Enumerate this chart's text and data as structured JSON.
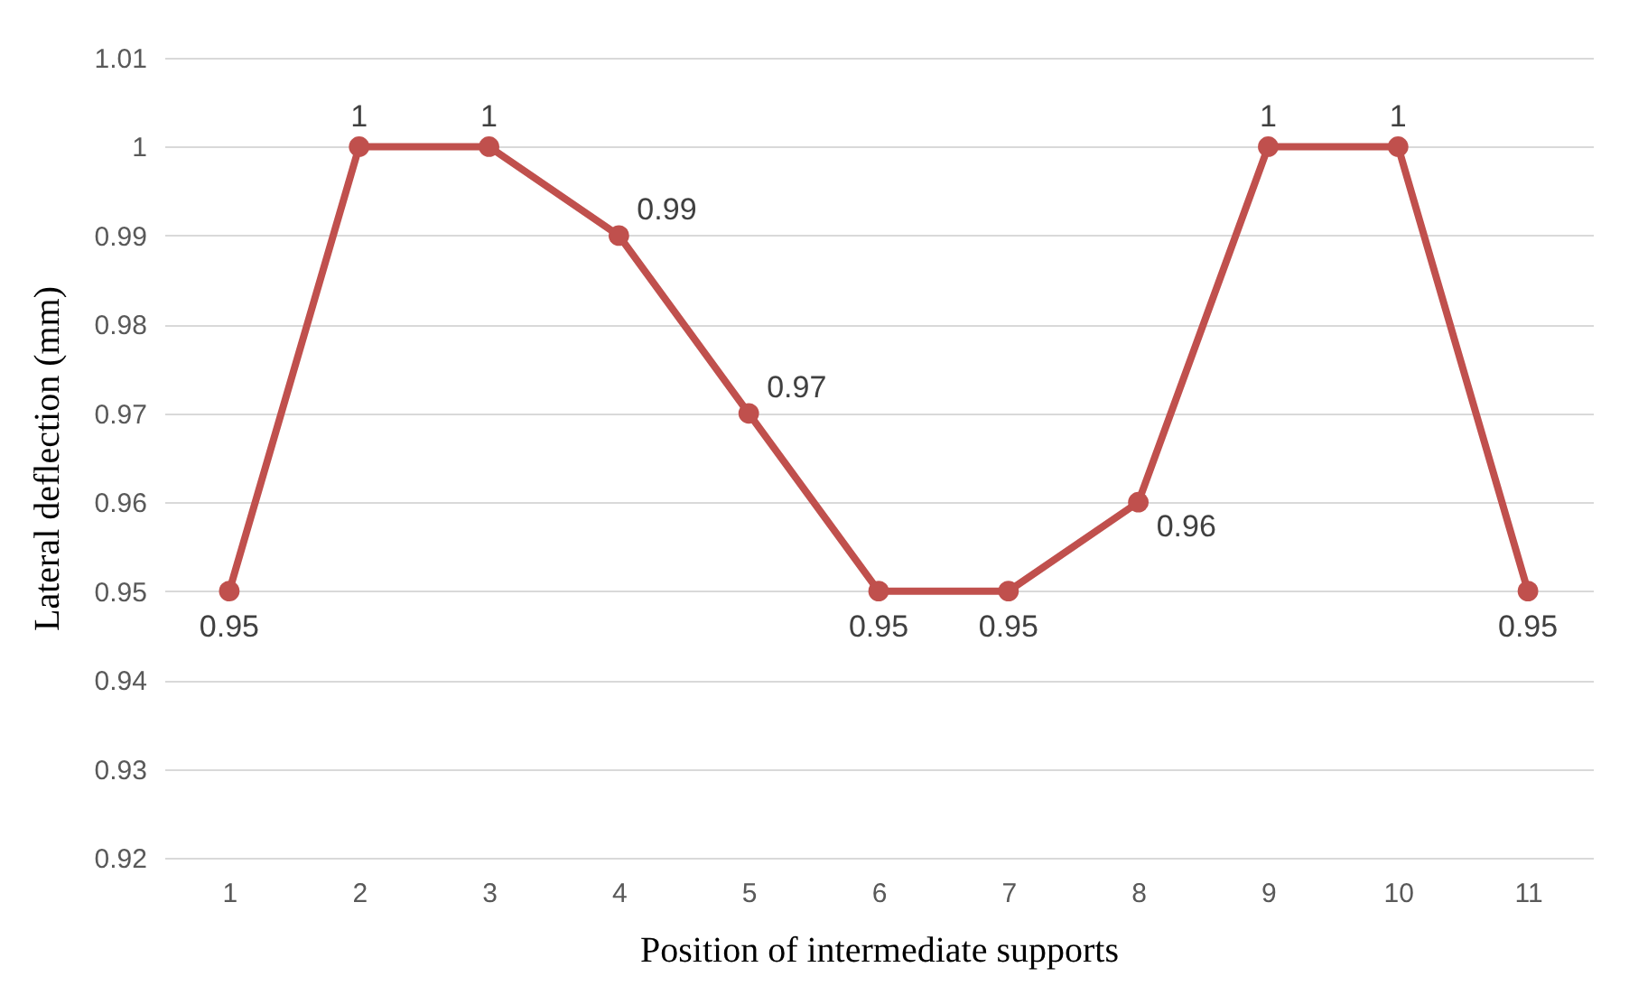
{
  "chart_data": {
    "type": "line",
    "xlabel": "Position of intermediate supports",
    "ylabel": "Lateral deflection (mm)",
    "categories": [
      "1",
      "2",
      "3",
      "4",
      "5",
      "6",
      "7",
      "8",
      "9",
      "10",
      "11"
    ],
    "series": [
      {
        "color": "#c0504d",
        "values": [
          0.95,
          1,
          1,
          0.99,
          0.97,
          0.95,
          0.95,
          0.96,
          1,
          1,
          0.95
        ]
      }
    ],
    "ylim": [
      0.92,
      1.01
    ],
    "yticks": [
      0.92,
      0.93,
      0.94,
      0.95,
      0.96,
      0.97,
      0.98,
      0.99,
      1,
      1.01
    ],
    "grid": "y",
    "marker": "circle",
    "line_style": "solid",
    "data_labels": true
  }
}
